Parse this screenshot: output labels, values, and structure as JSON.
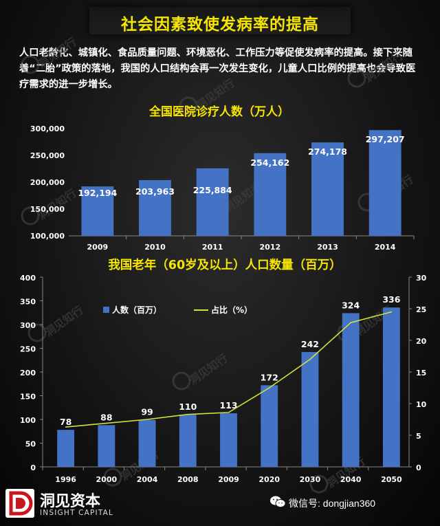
{
  "title": "社会因素致使发病率的提高",
  "intro": "人口老龄化、城镇化、食品质量问题、环境恶化、工作压力等促使发病率的提高。接下来随着“二胎”政策的落地，我国的人口结构会再一次发生变化，儿童人口比例的提高也会导致医疗需求的进一步增长。",
  "watermark_text": "洞见知行",
  "chart_data": [
    {
      "type": "bar",
      "title": "全国医院诊疗人数（万人）",
      "categories": [
        "2009",
        "2010",
        "2011",
        "2012",
        "2013",
        "2014"
      ],
      "values": [
        192194,
        203963,
        225884,
        254162,
        274178,
        297207
      ],
      "value_labels": [
        "192,194",
        "203,963",
        "225,884",
        "254,162",
        "274,178",
        "297,207"
      ],
      "ylim": [
        100000,
        300000
      ],
      "yticks": [
        "100,000",
        "150,000",
        "200,000",
        "250,000",
        "300,000"
      ],
      "bar_color": "#4472c4"
    },
    {
      "type": "bar+line",
      "title": "我国老年（60岁及以上）人口数量（百万）",
      "categories": [
        "1996",
        "2000",
        "2004",
        "2008",
        "2009",
        "2020",
        "2030",
        "2040",
        "2050"
      ],
      "series": [
        {
          "name": "人数（百万）",
          "type": "bar",
          "axis": "left",
          "values": [
            78,
            88,
            99,
            110,
            113,
            172,
            242,
            324,
            336
          ],
          "color": "#4472c4"
        },
        {
          "name": "占比（%）",
          "type": "line",
          "axis": "right",
          "values": [
            6.3,
            6.9,
            7.5,
            8.3,
            8.6,
            12.5,
            17.0,
            22.8,
            24.5
          ],
          "color": "#d8e23a"
        }
      ],
      "ylim_left": [
        0,
        400
      ],
      "yticks_left": [
        "0",
        "50",
        "100",
        "150",
        "200",
        "250",
        "300",
        "350",
        "400"
      ],
      "ylim_right": [
        0,
        30
      ],
      "yticks_right": [
        "0",
        "5",
        "10",
        "15",
        "20",
        "25",
        "30"
      ],
      "legend_position": "top-left"
    }
  ],
  "footer": {
    "brand": "洞见资本",
    "brand_en": "INSIGHT CAPITAL",
    "wechat": "微信号: dongjian360"
  }
}
